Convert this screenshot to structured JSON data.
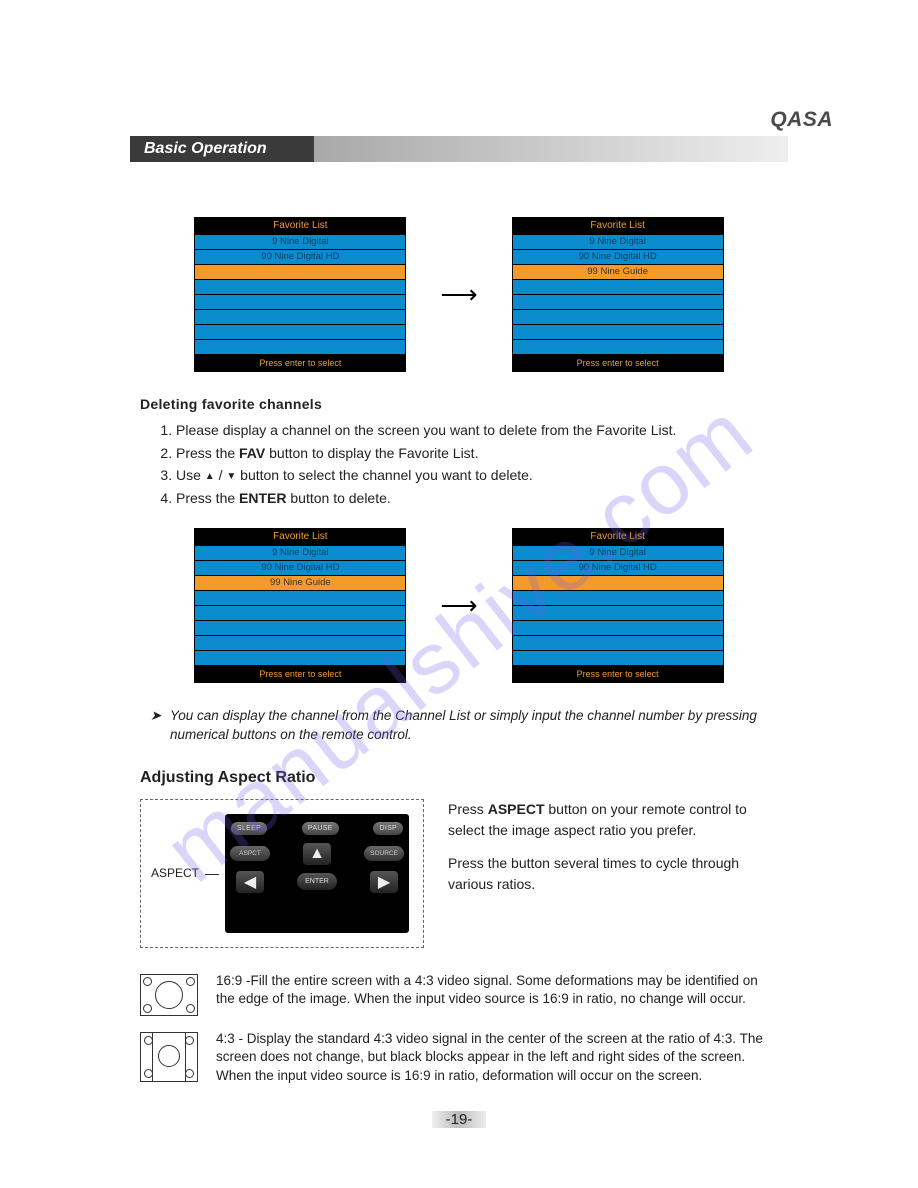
{
  "brand": "QASA",
  "section_title": "Basic Operation",
  "watermark": "manualshive.com",
  "favlist": {
    "title": "Favorite List",
    "footer": "Press enter to select",
    "items": [
      "9 Nine Digital",
      "90 Nine Digital HD",
      "99 Nine Guide"
    ],
    "colors": {
      "row_bg": "#0a8ccf",
      "selected_bg": "#f39a2a",
      "frame_bg": "#000000",
      "accent_text": "#f39a2a"
    },
    "pair1_left": {
      "rows": [
        "9 Nine Digital",
        "90 Nine Digital HD",
        "__sel_empty__",
        "",
        "",
        "",
        "",
        ""
      ]
    },
    "pair1_right": {
      "rows": [
        "9 Nine Digital",
        "90 Nine Digital HD",
        "__sel__99 Nine Guide",
        "",
        "",
        "",
        "",
        ""
      ]
    },
    "pair2_left": {
      "rows": [
        "9 Nine Digital",
        "90 Nine Digital HD",
        "__sel__99 Nine Guide",
        "",
        "",
        "",
        "",
        ""
      ]
    },
    "pair2_right": {
      "rows": [
        "9 Nine Digital",
        "90 Nine Digital HD",
        "__sel_empty__",
        "",
        "",
        "",
        "",
        ""
      ]
    }
  },
  "delete_heading": "Deleting favorite channels",
  "steps": {
    "s1_a": "Please display a channel on the screen you want to delete from the Favorite List.",
    "s2_a": "Press the ",
    "s2_b": "FAV",
    "s2_c": " button to display the Favorite List.",
    "s3_a": "Use ",
    "s3_tri_up": "▲",
    "s3_sep": " / ",
    "s3_tri_dn": "▼",
    "s3_b": " button to select the channel you want to delete.",
    "s4_a": "Press the ",
    "s4_b": "ENTER",
    "s4_c": " button to delete."
  },
  "note": "You can display the channel from the Channel List or simply input the channel number by pressing numerical buttons on the remote control.",
  "aspect": {
    "heading": "Adjusting Aspect Ratio",
    "label": "ASPECT",
    "remote_buttons": {
      "sleep": "SLEEP",
      "pause": "PAUSE",
      "disp": "DISP",
      "aspct": "ASPCT",
      "source": "SOURCE",
      "enter": "ENTER"
    },
    "p1_a": "Press ",
    "p1_b": "ASPECT",
    "p1_c": " button on your remote control to select the image aspect ratio you prefer.",
    "p2": "Press the button several times to cycle through various ratios.",
    "r169": "16:9 -Fill the entire screen with a 4:3 video signal. Some deformations may be identified on the edge of the image. When the input video source is 16:9 in ratio, no change will occur.",
    "r43": "4:3 - Display the standard 4:3 video signal in the center of the screen at the ratio of 4:3. The screen does not change, but black blocks appear in the left and right sides of the screen. When the input video source is 16:9 in ratio, deformation will occur on the screen."
  },
  "page_number": "-19-"
}
